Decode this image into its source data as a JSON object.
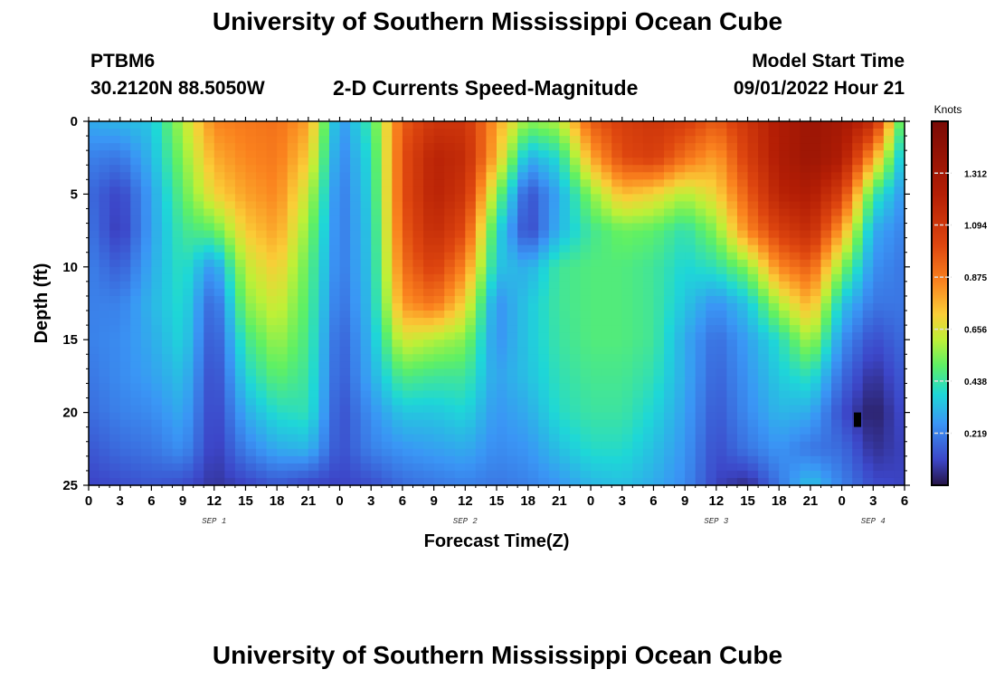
{
  "page": {
    "title": "University of Southern Mississippi Ocean Cube",
    "station_id": "PTBM6",
    "coordinates": "30.2120N  88.5050W",
    "product": "2-D Currents Speed-Magnitude",
    "model_start_label": "Model Start Time",
    "model_start_value": "09/01/2022 Hour 21",
    "footer_title": "University of Southern Mississippi Ocean Cube"
  },
  "chart_data": {
    "type": "heatmap",
    "title": "2-D Currents Speed-Magnitude",
    "xlabel": "Forecast Time(Z)",
    "ylabel": "Depth (ft)",
    "x_range_hours": [
      0,
      78
    ],
    "y_range_ft": [
      0,
      25
    ],
    "y_inverted": true,
    "x_tick_labels": [
      "0",
      "3",
      "6",
      "9",
      "12",
      "15",
      "18",
      "21",
      "0",
      "3",
      "6",
      "9",
      "12",
      "15",
      "18",
      "21",
      "0",
      "3",
      "6",
      "9",
      "12",
      "15",
      "18",
      "21",
      "0",
      "3",
      "6"
    ],
    "x_tick_step_hours": 3,
    "y_ticks": [
      0,
      5,
      10,
      15,
      20,
      25
    ],
    "date_labels": [
      {
        "label": "SEP 1",
        "hour": 12
      },
      {
        "label": "SEP 2",
        "hour": 36
      },
      {
        "label": "SEP 3",
        "hour": 60
      },
      {
        "label": "SEP 4",
        "hour": 75
      }
    ],
    "colorbar": {
      "unit": "Knots",
      "min": 0,
      "max": 1.53,
      "ticks": [
        0.219,
        0.438,
        0.656,
        0.875,
        1.094,
        1.312
      ],
      "tick_labels": [
        "0.219",
        "0.438",
        "0.656",
        "0.875",
        "1.094",
        "1.312"
      ]
    },
    "speed_field_knots": {
      "description": "Estimated current speed; columns every 3 h (0..78), rows every 2.5 ft (0..25)",
      "time_hours": [
        0,
        3,
        6,
        9,
        12,
        15,
        18,
        21,
        24,
        27,
        30,
        33,
        36,
        39,
        42,
        45,
        48,
        51,
        54,
        57,
        60,
        63,
        66,
        69,
        72,
        75,
        78
      ],
      "depth_ft": [
        0,
        2.5,
        5,
        7.5,
        10,
        12.5,
        15,
        17.5,
        20,
        22.5,
        25
      ],
      "values": [
        [
          0.3,
          0.32,
          0.35,
          0.6,
          0.85,
          0.88,
          0.9,
          0.8,
          0.25,
          0.45,
          0.95,
          1.1,
          1.1,
          0.8,
          0.55,
          0.6,
          0.95,
          1.05,
          1.1,
          1.05,
          0.95,
          1.1,
          1.25,
          1.35,
          1.3,
          1.15,
          0.4
        ],
        [
          0.22,
          0.2,
          0.32,
          0.55,
          0.78,
          0.85,
          0.88,
          0.72,
          0.22,
          0.4,
          0.98,
          1.2,
          1.15,
          0.75,
          0.3,
          0.4,
          0.78,
          1.0,
          1.05,
          0.9,
          0.8,
          1.05,
          1.25,
          1.35,
          1.25,
          0.8,
          0.3
        ],
        [
          0.18,
          0.1,
          0.28,
          0.5,
          0.7,
          0.8,
          0.85,
          0.62,
          0.2,
          0.38,
          0.98,
          1.2,
          1.1,
          0.55,
          0.12,
          0.3,
          0.55,
          0.75,
          0.7,
          0.6,
          0.7,
          0.95,
          1.2,
          1.25,
          1.05,
          0.45,
          0.25
        ],
        [
          0.2,
          0.08,
          0.28,
          0.45,
          0.5,
          0.72,
          0.8,
          0.55,
          0.2,
          0.36,
          0.95,
          1.15,
          1.0,
          0.4,
          0.1,
          0.32,
          0.45,
          0.52,
          0.5,
          0.42,
          0.55,
          0.85,
          1.05,
          1.15,
          0.8,
          0.3,
          0.22
        ],
        [
          0.22,
          0.15,
          0.3,
          0.42,
          0.25,
          0.62,
          0.72,
          0.5,
          0.2,
          0.35,
          0.9,
          1.05,
          0.85,
          0.35,
          0.3,
          0.45,
          0.48,
          0.48,
          0.45,
          0.38,
          0.42,
          0.55,
          0.85,
          0.95,
          0.55,
          0.25,
          0.2
        ],
        [
          0.22,
          0.22,
          0.32,
          0.4,
          0.15,
          0.55,
          0.65,
          0.48,
          0.18,
          0.34,
          0.82,
          0.9,
          0.7,
          0.25,
          0.35,
          0.45,
          0.48,
          0.48,
          0.45,
          0.35,
          0.25,
          0.35,
          0.6,
          0.78,
          0.35,
          0.2,
          0.2
        ],
        [
          0.22,
          0.24,
          0.3,
          0.38,
          0.12,
          0.45,
          0.58,
          0.46,
          0.15,
          0.32,
          0.65,
          0.6,
          0.55,
          0.25,
          0.35,
          0.44,
          0.48,
          0.48,
          0.45,
          0.3,
          0.18,
          0.28,
          0.4,
          0.6,
          0.25,
          0.12,
          0.18
        ],
        [
          0.2,
          0.24,
          0.28,
          0.34,
          0.1,
          0.38,
          0.5,
          0.44,
          0.14,
          0.3,
          0.48,
          0.45,
          0.45,
          0.28,
          0.34,
          0.42,
          0.46,
          0.46,
          0.42,
          0.3,
          0.16,
          0.26,
          0.36,
          0.42,
          0.18,
          0.06,
          0.15
        ],
        [
          0.18,
          0.22,
          0.24,
          0.3,
          0.09,
          0.3,
          0.4,
          0.42,
          0.12,
          0.25,
          0.35,
          0.35,
          0.38,
          0.26,
          0.3,
          0.4,
          0.44,
          0.44,
          0.38,
          0.28,
          0.14,
          0.24,
          0.32,
          0.3,
          0.12,
          0.02,
          0.12
        ],
        [
          0.14,
          0.18,
          0.2,
          0.25,
          0.08,
          0.22,
          0.3,
          0.32,
          0.12,
          0.22,
          0.26,
          0.28,
          0.3,
          0.24,
          0.26,
          0.34,
          0.4,
          0.4,
          0.34,
          0.26,
          0.12,
          0.2,
          0.26,
          0.2,
          0.18,
          0.06,
          0.1
        ],
        [
          0.1,
          0.12,
          0.14,
          0.12,
          0.07,
          0.1,
          0.14,
          0.1,
          0.1,
          0.12,
          0.18,
          0.2,
          0.22,
          0.2,
          0.22,
          0.26,
          0.32,
          0.34,
          0.3,
          0.24,
          0.1,
          0.05,
          0.2,
          0.35,
          0.22,
          0.12,
          0.1
        ]
      ]
    },
    "min_marker": {
      "hour": 73.5,
      "depth_ft": 20.5
    }
  }
}
